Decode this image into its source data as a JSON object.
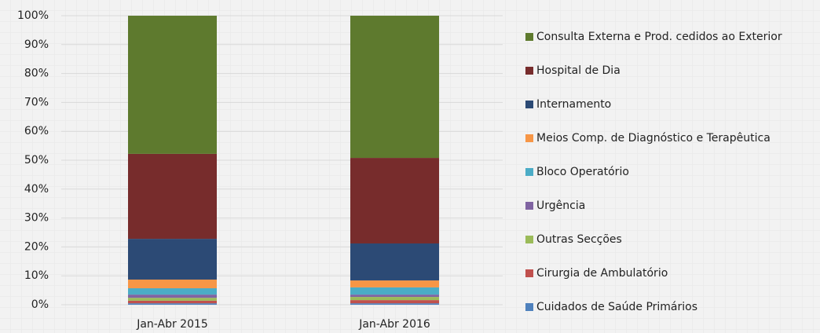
{
  "chart_data": {
    "type": "stacked_bar_percent",
    "categories": [
      "Jan-Abr 2015",
      "Jan-Abr 2016"
    ],
    "series": [
      {
        "name": "Cuidados de Saúde Primários",
        "color": "#4f81bd",
        "values": [
          0.5,
          0.5
        ]
      },
      {
        "name": "Cirurgia de Ambulatório",
        "color": "#c0504d",
        "values": [
          0.9,
          1.1
        ]
      },
      {
        "name": "Outras Secções",
        "color": "#9bbb59",
        "values": [
          1.0,
          1.1
        ]
      },
      {
        "name": "Urgência",
        "color": "#8064a2",
        "values": [
          1.1,
          0.8
        ]
      },
      {
        "name": "Bloco Operatório",
        "color": "#4bacc6",
        "values": [
          2.2,
          2.5
        ]
      },
      {
        "name": "Meios Comp. de Diagnóstico e Terapêutica",
        "color": "#f79646",
        "values": [
          3.0,
          2.4
        ]
      },
      {
        "name": "Internamento",
        "color": "#2c4a75",
        "values": [
          14.1,
          12.8
        ]
      },
      {
        "name": "Hospital de Dia",
        "color": "#772c2c",
        "values": [
          29.4,
          29.6
        ]
      },
      {
        "name": "Consulta Externa e Prod. cedidos ao Exterior",
        "color": "#5e7a2e",
        "values": [
          47.8,
          49.2
        ]
      }
    ],
    "ylim": [
      0,
      100
    ],
    "yticks": [
      {
        "value": 0,
        "label": "0%"
      },
      {
        "value": 10,
        "label": "10%"
      },
      {
        "value": 20,
        "label": "20%"
      },
      {
        "value": 30,
        "label": "30%"
      },
      {
        "value": 40,
        "label": "40%"
      },
      {
        "value": 50,
        "label": "50%"
      },
      {
        "value": 60,
        "label": "60%"
      },
      {
        "value": 70,
        "label": "70%"
      },
      {
        "value": 80,
        "label": "80%"
      },
      {
        "value": 90,
        "label": "90%"
      },
      {
        "value": 100,
        "label": "100%"
      }
    ],
    "grid": true,
    "legend": "right"
  }
}
